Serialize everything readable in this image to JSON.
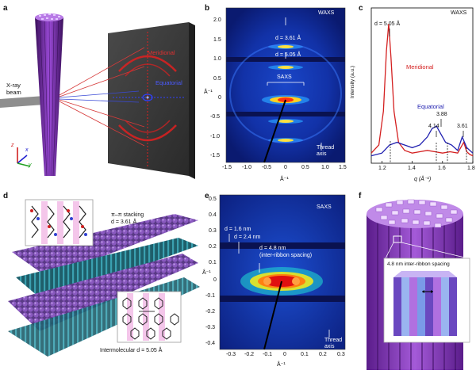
{
  "figure": {
    "panel_labels": [
      "a",
      "b",
      "c",
      "d",
      "e",
      "f"
    ],
    "panel_a": {
      "xray_label_line1": "X-ray",
      "xray_label_line2": "beam",
      "meridional": "Meridional",
      "equatorial": "Equatorial",
      "axis_z": "z",
      "axis_x": "x",
      "axis_y": "y"
    },
    "panel_b": {
      "waxs": "WAXS",
      "saxs": "SAXS",
      "d1": "d = 3.61 Å",
      "d2": "d = 5.05 Å",
      "thread_line1": "Thread",
      "thread_line2": "axis",
      "ylabel": "Å⁻¹",
      "xlabel": "Å⁻¹",
      "yticks": [
        "2.0",
        "1.5",
        "1.0",
        "0.5",
        "0",
        "-0.5",
        "-1.0",
        "-1.5"
      ],
      "xticks": [
        "-1.5",
        "-1.0",
        "-0.5",
        "0",
        "0.5",
        "1.0",
        "1.5"
      ]
    },
    "panel_c": {
      "waxs": "WAXS",
      "peak_main": "d = 5.05 Å",
      "meridional": "Meridional",
      "equatorial": "Equatorial",
      "p388": "3.88",
      "p414": "4.14",
      "p361": "3.61",
      "ylabel": "Intensity (a.u.)",
      "xlabel": "q (Å⁻¹)",
      "xticks": [
        "1.2",
        "1.4",
        "1.6",
        "1.8"
      ]
    },
    "panel_d": {
      "stack_line1": "π–π stacking",
      "stack_line2": "d = 3.61 Å",
      "intermol": "Intermolecular d = 5.05 Å"
    },
    "panel_e": {
      "saxs": "SAXS",
      "d1": "d = 1.6 nm",
      "d2": "d = 2.4 nm",
      "d3": "d = 4.8 nm",
      "d3b": "(inter-ribbon spacing)",
      "thread_line1": "Thread",
      "thread_line2": "axis",
      "ylabel": "Å⁻¹",
      "xlabel": "Å⁻¹",
      "yticks": [
        "0.5",
        "0.4",
        "0.3",
        "0.2",
        "0.1",
        "0",
        "-0.1",
        "-0.2",
        "-0.3",
        "-0.4"
      ],
      "xticks": [
        "-0.3",
        "-0.2",
        "-0.1",
        "0",
        "0.1",
        "0.2",
        "0.3"
      ]
    },
    "panel_f": {
      "spacing": "4.8 nm inter-ribbon spacing"
    }
  },
  "chart_data": [
    {
      "type": "line",
      "xlabel": "q (Å⁻¹)",
      "ylabel": "Intensity (a.u.)",
      "xlim": [
        1.13,
        1.8
      ],
      "series": [
        {
          "name": "Meridional",
          "color": "#d42020",
          "x": [
            1.13,
            1.18,
            1.21,
            1.23,
            1.245,
            1.26,
            1.28,
            1.31,
            1.35,
            1.4,
            1.45,
            1.5,
            1.55,
            1.6,
            1.65,
            1.7,
            1.74,
            1.76,
            1.78,
            1.8
          ],
          "y": [
            0.04,
            0.1,
            0.35,
            0.8,
            1.0,
            0.75,
            0.35,
            0.12,
            0.06,
            0.04,
            0.05,
            0.06,
            0.05,
            0.04,
            0.05,
            0.04,
            0.12,
            0.05,
            0.03,
            0.02
          ]
        },
        {
          "name": "Equatorial",
          "color": "#2020b0",
          "x": [
            1.13,
            1.2,
            1.25,
            1.3,
            1.35,
            1.4,
            1.45,
            1.5,
            1.53,
            1.56,
            1.59,
            1.62,
            1.66,
            1.7,
            1.73,
            1.76,
            1.8
          ],
          "y": [
            0.02,
            0.04,
            0.1,
            0.12,
            0.1,
            0.08,
            0.1,
            0.16,
            0.22,
            0.24,
            0.18,
            0.12,
            0.1,
            0.06,
            0.16,
            0.08,
            0.04
          ]
        }
      ]
    }
  ]
}
